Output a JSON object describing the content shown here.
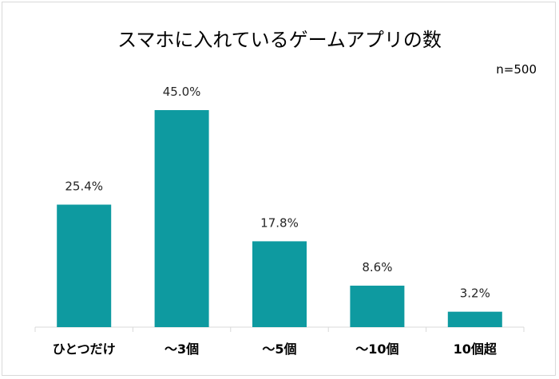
{
  "chart_data": {
    "type": "bar",
    "title": "スマホに入れているゲームアプリの数",
    "note": "n=500",
    "categories": [
      "ひとつだけ",
      "～3個",
      "～5個",
      "～10個",
      "10個超"
    ],
    "values": [
      25.4,
      45.0,
      17.8,
      8.6,
      3.2
    ],
    "data_labels": [
      "25.4%",
      "45.0%",
      "17.8%",
      "8.6%",
      "3.2%"
    ],
    "unit": "%",
    "xlabel": "",
    "ylabel": "",
    "grid": false,
    "legend": "none",
    "bar_color": "#0e9aa0"
  }
}
